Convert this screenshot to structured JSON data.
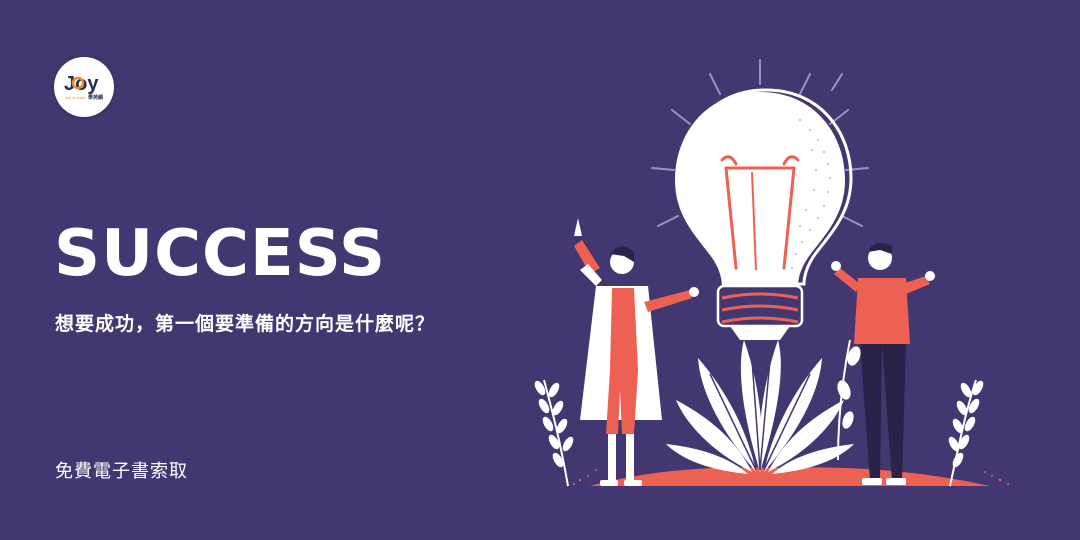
{
  "logo": {
    "main_text": "Joy",
    "sub_text": "Joy to learn",
    "cn_text": "學苑網",
    "accent_color": "#f08a24",
    "dark_color": "#2b2b55"
  },
  "hero": {
    "headline": "SUCCESS",
    "subheadline": "想要成功，第一個要準備的方向是什麼呢？",
    "cta": "免費電子書索取"
  },
  "colors": {
    "background": "#433771",
    "coral": "#ec6152",
    "white": "#ffffff",
    "dark": "#2a2248"
  },
  "illustration": {
    "icons": [
      "light-bulb-icon",
      "scientist-figure",
      "man-figure",
      "plant-leaves",
      "fern-icon"
    ]
  }
}
